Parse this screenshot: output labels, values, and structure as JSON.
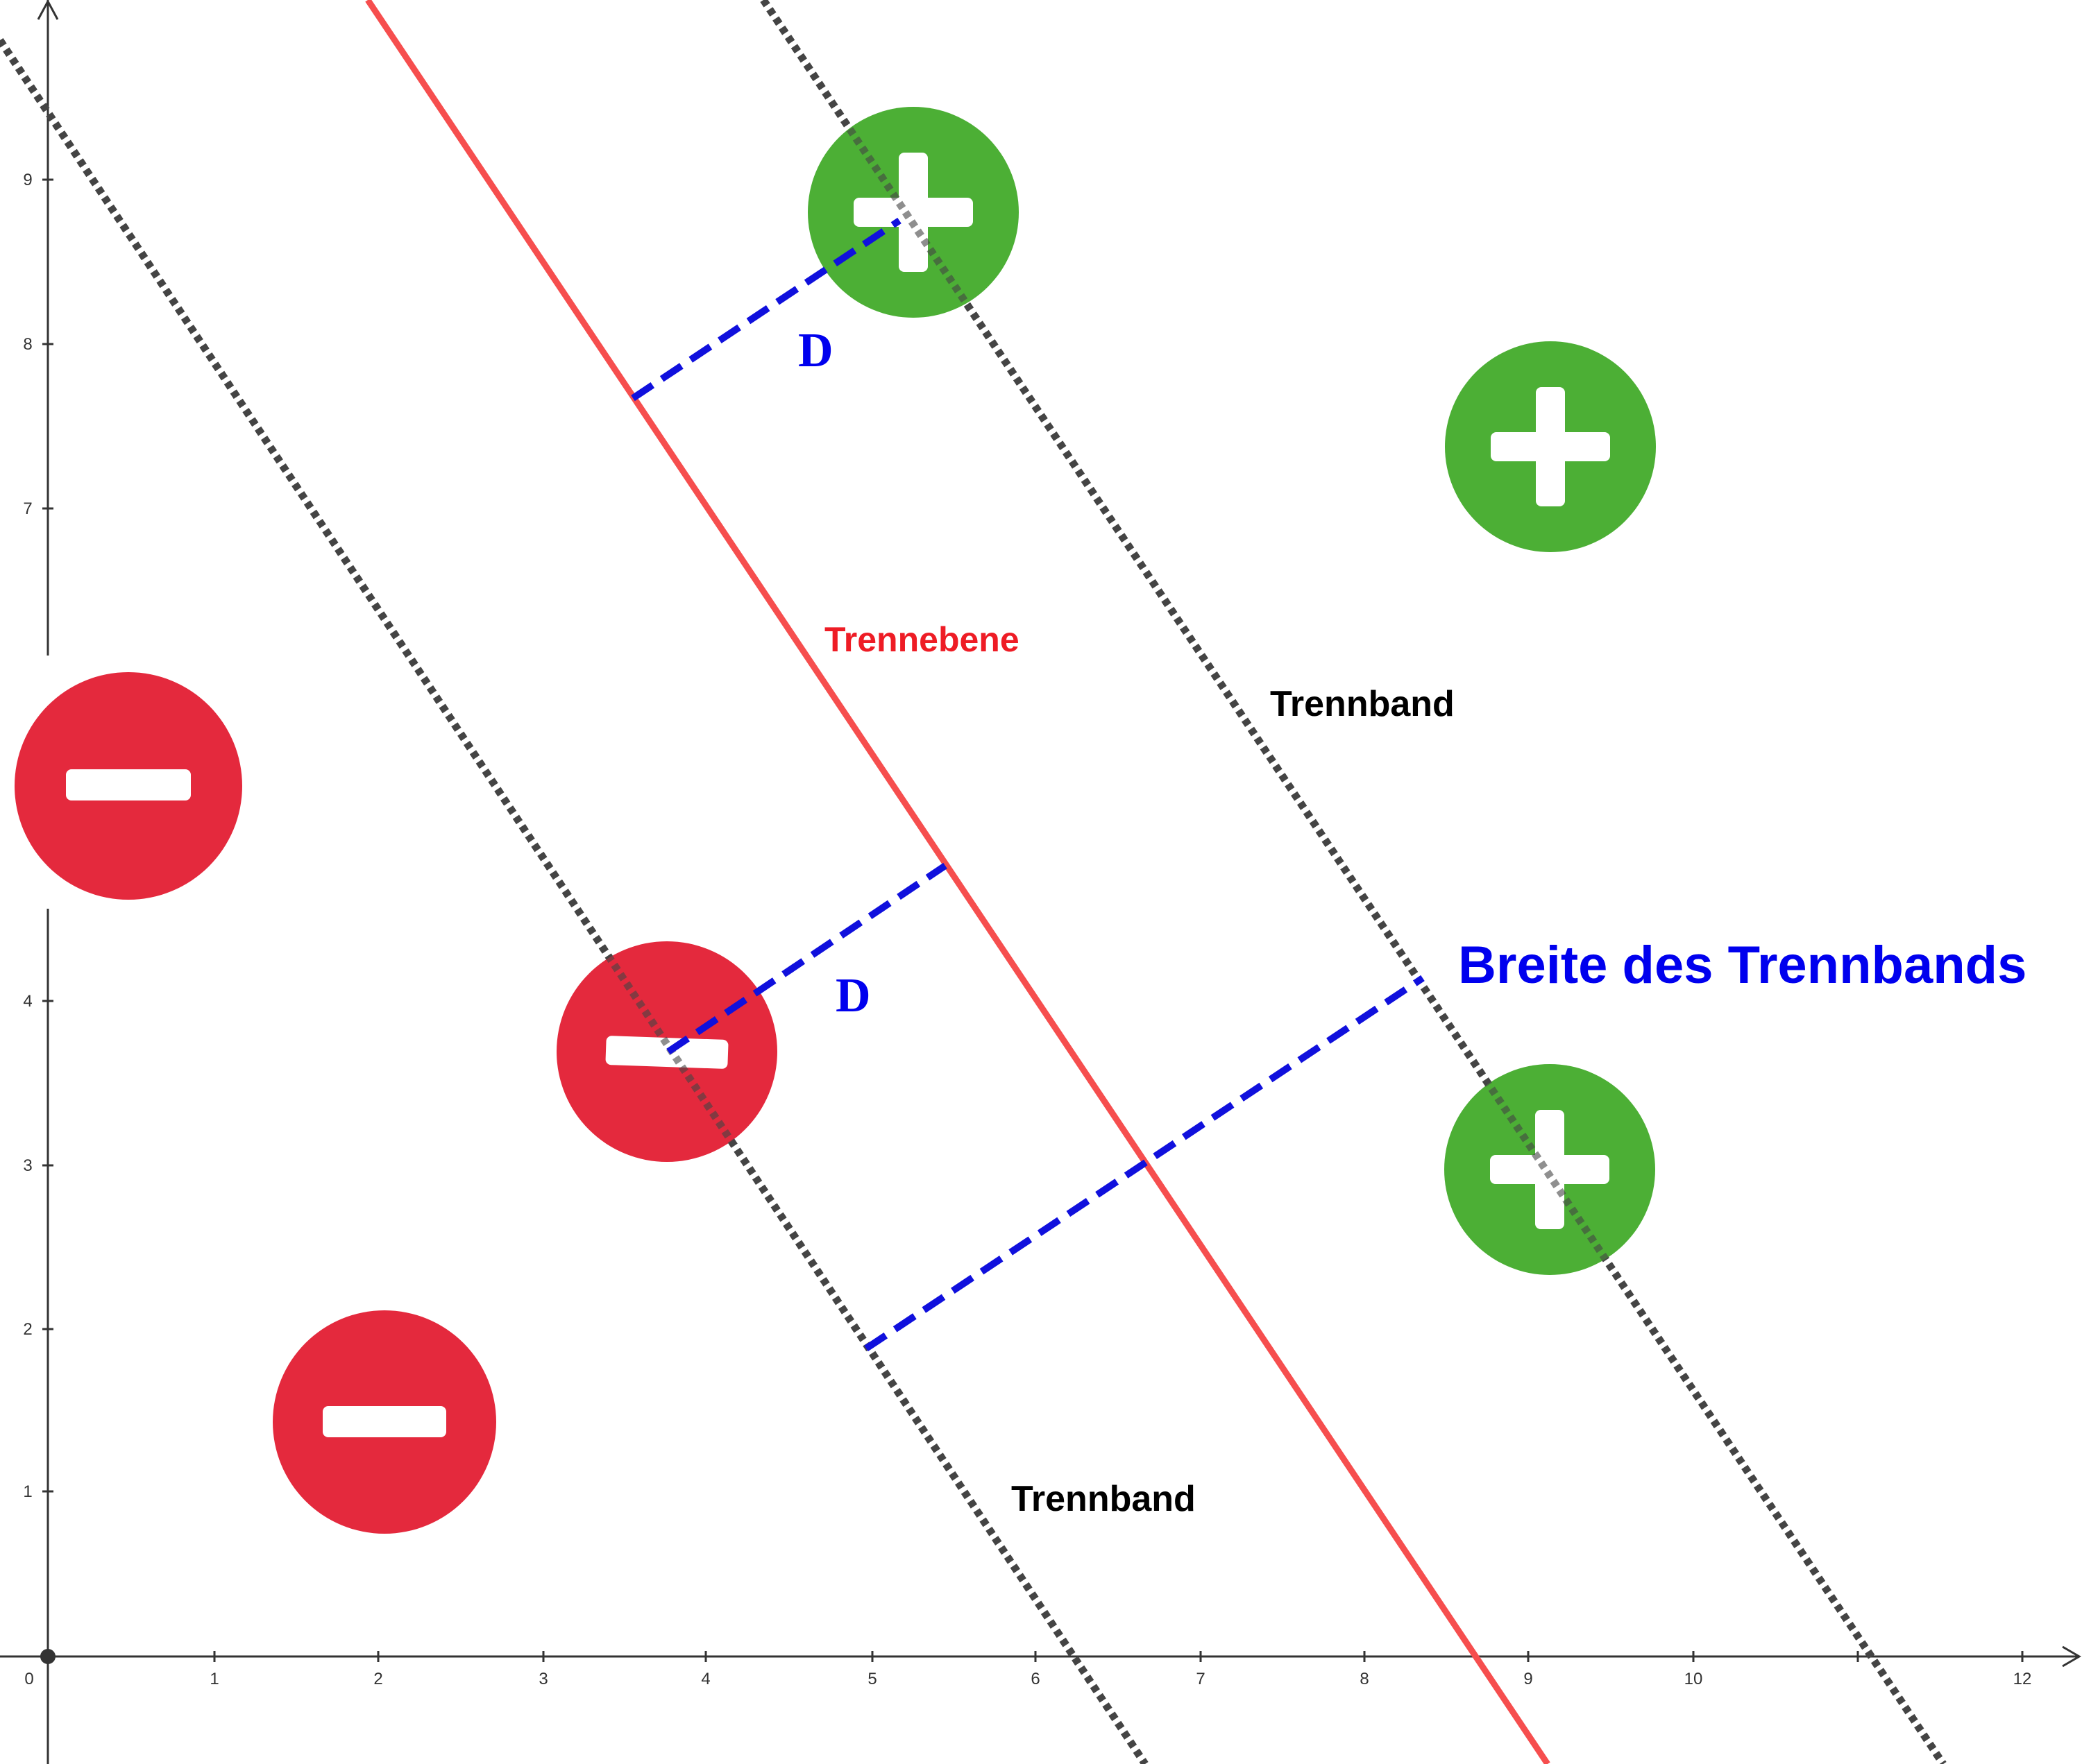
{
  "axes": {
    "x_ticks": [
      "0",
      "1",
      "2",
      "3",
      "4",
      "5",
      "6",
      "7",
      "8",
      "9",
      "10",
      "12"
    ],
    "y_ticks": [
      "1",
      "2",
      "3",
      "4",
      "7",
      "8",
      "9"
    ]
  },
  "labels": {
    "hyperplane": "Trennebene",
    "band_upper": "Trennband",
    "band_lower": "Trennband",
    "width": "Breite des Trennbands",
    "distance_1": "D",
    "distance_2": "D"
  },
  "classes": {
    "positive": {
      "symbol": "plus",
      "color": "#4caf35"
    },
    "negative": {
      "symbol": "minus",
      "color": "#e4293d"
    }
  },
  "colors": {
    "hyperplane": "#f64e4e",
    "margin_lines": "#444444",
    "distance_lines": "#1010dd"
  }
}
